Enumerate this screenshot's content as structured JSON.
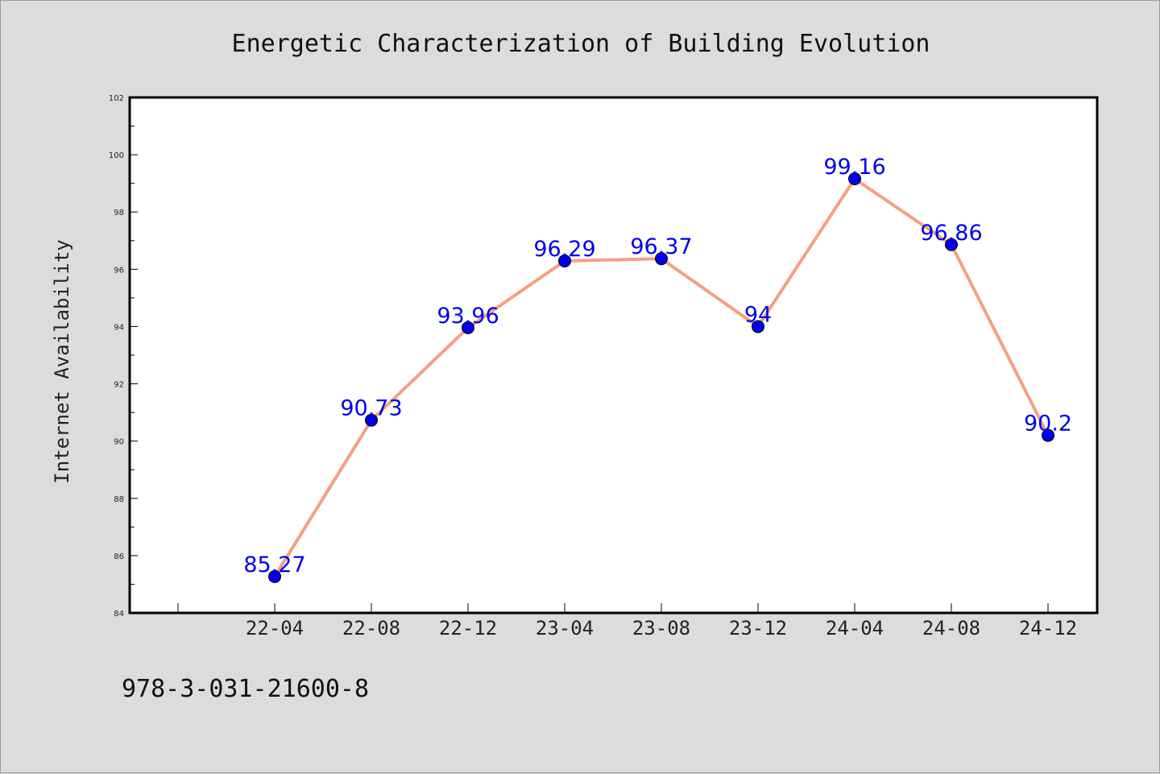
{
  "chart_data": {
    "type": "line",
    "title": "Energetic Characterization of Building Evolution",
    "xlabel": "",
    "ylabel": "Internet Availability",
    "categories": [
      "22-04",
      "22-08",
      "22-12",
      "23-04",
      "23-08",
      "23-12",
      "24-04",
      "24-08",
      "24-12"
    ],
    "series": [
      {
        "values": [
          85.27,
          90.73,
          93.96,
          96.29,
          96.37,
          94,
          99.16,
          96.86,
          90.2
        ],
        "labels": [
          "85.27",
          "90.73",
          "93.96",
          "96.29",
          "96.37",
          "94",
          "99.16",
          "96.86",
          "90.2"
        ],
        "line_color": "#f4a080",
        "marker_color": "#0000ee"
      }
    ],
    "ylim": [
      84,
      102
    ],
    "yticks": [
      "84",
      "86",
      "88",
      "90",
      "92",
      "94",
      "96",
      "98",
      "100",
      "102"
    ],
    "grid": false,
    "legend": "none"
  },
  "footnote": "978-3-031-21600-8"
}
